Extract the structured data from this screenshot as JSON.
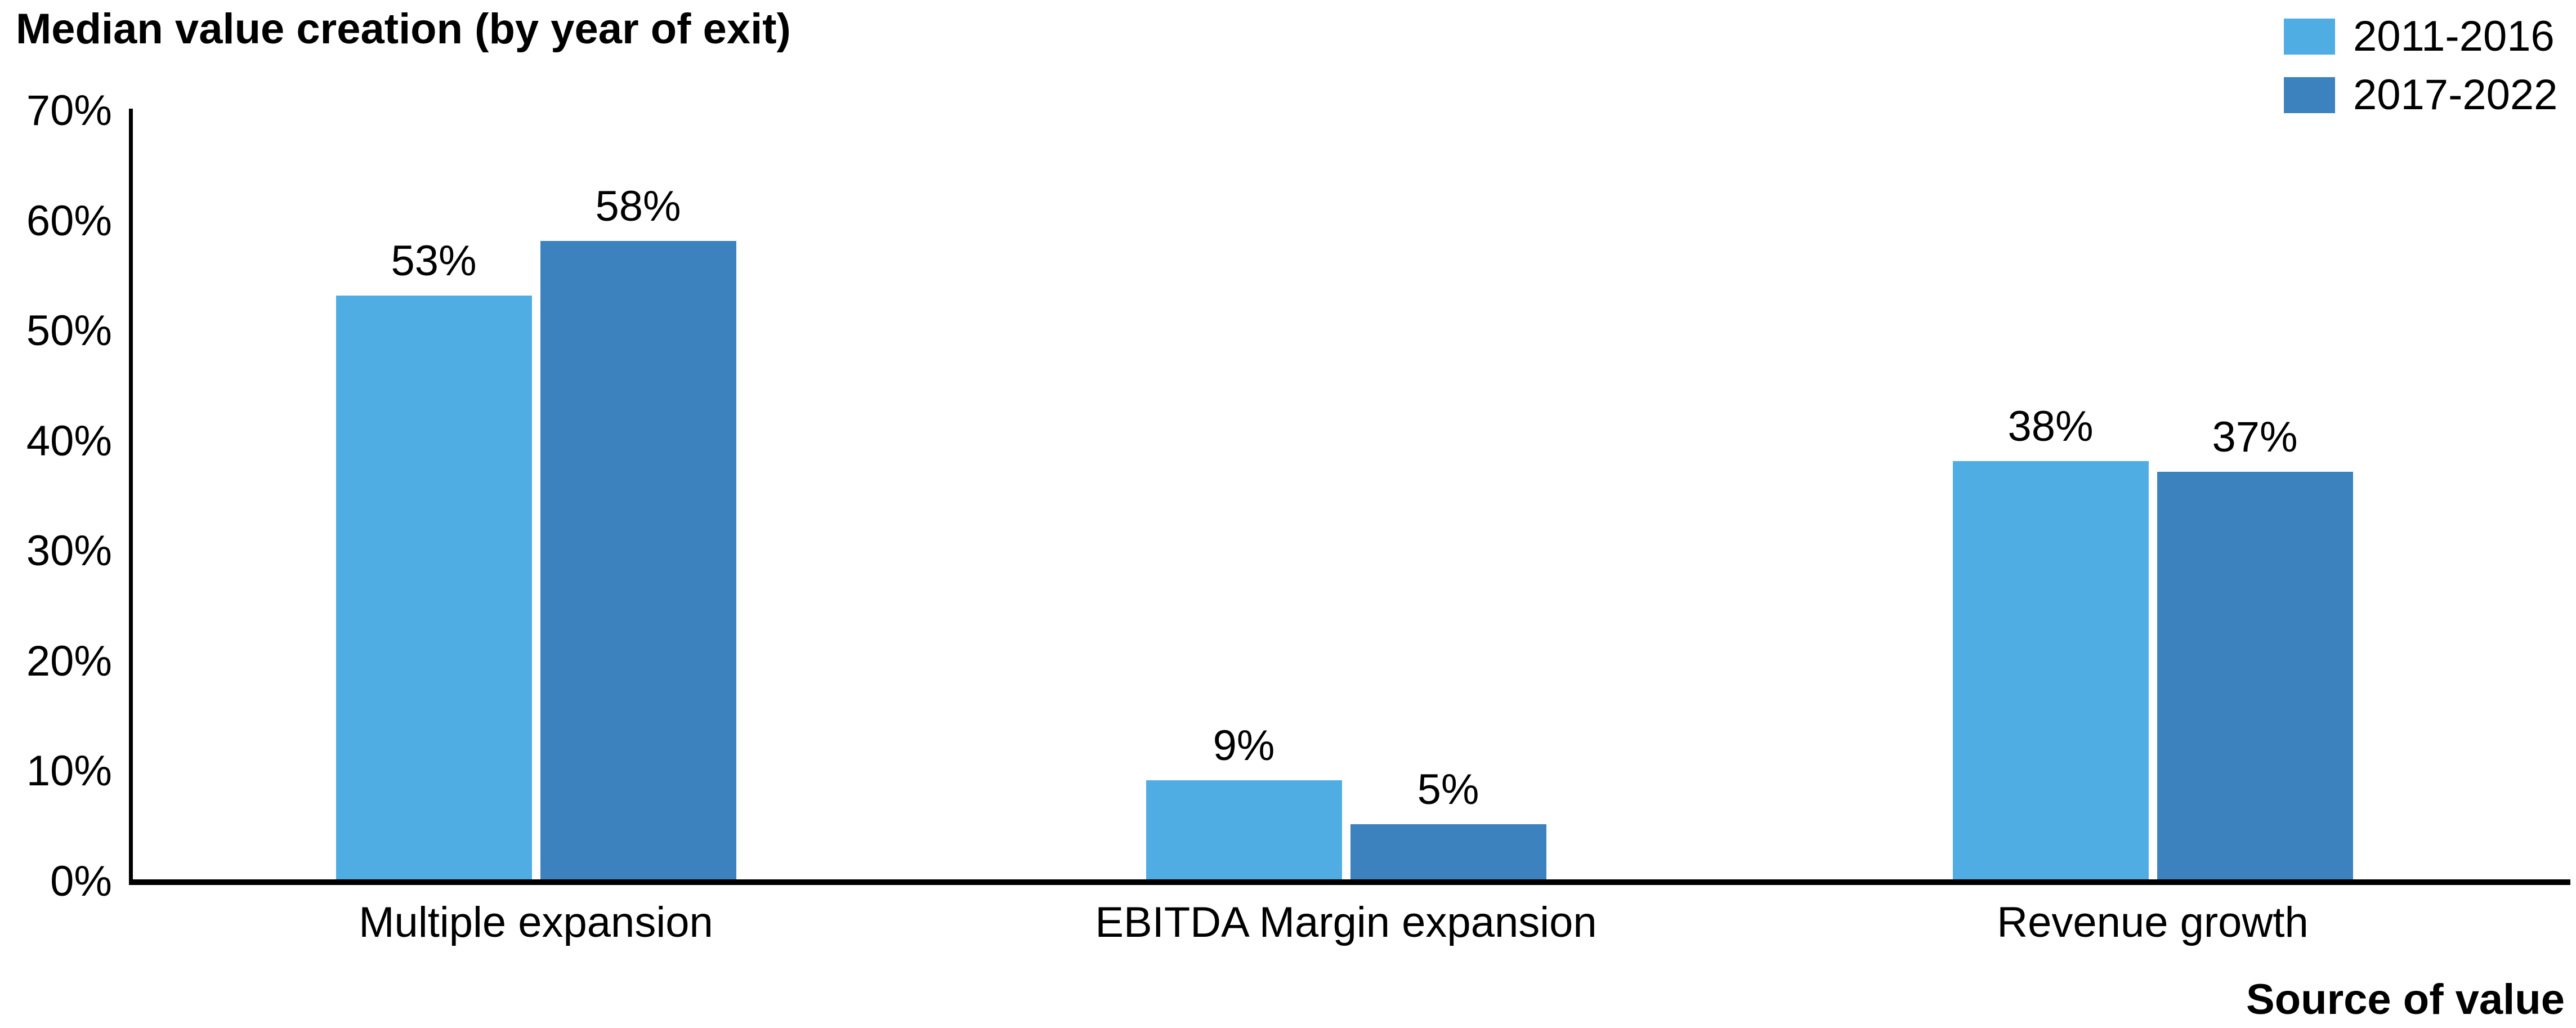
{
  "chart_data": {
    "type": "bar",
    "title": "Median value creation (by year of exit)",
    "xlabel": "Source of value",
    "ylabel": "",
    "categories": [
      "Multiple expansion",
      "EBITDA Margin expansion",
      "Revenue growth"
    ],
    "series": [
      {
        "name": "2011-2016",
        "color": "#4FADE3",
        "values": [
          53,
          9,
          38
        ]
      },
      {
        "name": "2017-2022",
        "color": "#3B82BE",
        "values": [
          58,
          5,
          37
        ]
      }
    ],
    "value_label_suffix": "%",
    "y_axis": {
      "min": 0,
      "max": 70,
      "step": 10,
      "tick_labels": [
        "0%",
        "10%",
        "20%",
        "30%",
        "40%",
        "50%",
        "60%",
        "70%"
      ]
    },
    "grid": false,
    "legend_position": "top-right",
    "colors": {
      "axis": "#000000",
      "text": "#000000",
      "background": "#ffffff"
    }
  }
}
